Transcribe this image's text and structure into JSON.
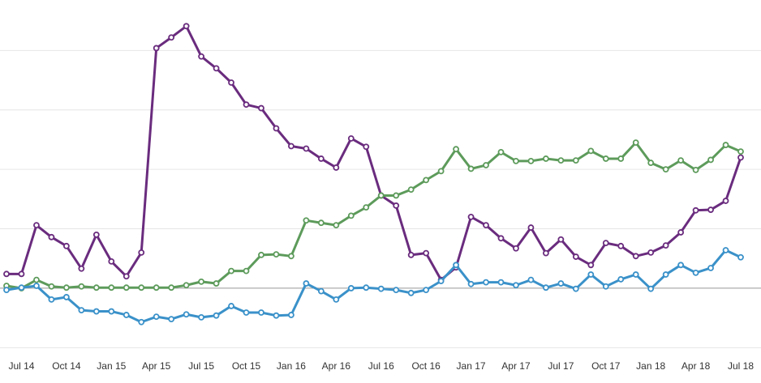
{
  "chart_data": {
    "type": "line",
    "categories": [
      null,
      "Jul 14",
      null,
      null,
      "Oct 14",
      null,
      null,
      "Jan 15",
      null,
      null,
      "Apr 15",
      null,
      null,
      "Jul 15",
      null,
      null,
      "Oct 15",
      null,
      null,
      "Jan 16",
      null,
      null,
      "Apr 16",
      null,
      null,
      "Jul 16",
      null,
      null,
      "Oct 16",
      null,
      null,
      "Jan 17",
      null,
      null,
      "Apr 17",
      null,
      null,
      "Jul 17",
      null,
      null,
      "Oct 17",
      null,
      null,
      "Jan 18",
      null,
      null,
      "Apr 18",
      null,
      null,
      "Jul 18"
    ],
    "series": [
      {
        "color": "#6a2c7e",
        "values": [
          0.24,
          0.24,
          1.06,
          0.86,
          0.71,
          0.33,
          0.9,
          0.45,
          0.2,
          0.6,
          4.04,
          4.22,
          4.41,
          3.9,
          3.7,
          3.46,
          3.09,
          3.03,
          2.69,
          2.39,
          2.35,
          2.18,
          2.03,
          2.52,
          2.38,
          1.56,
          1.39,
          0.56,
          0.59,
          0.14,
          0.35,
          1.2,
          1.06,
          0.84,
          0.67,
          1.02,
          0.59,
          0.82,
          0.53,
          0.39,
          0.76,
          0.71,
          0.54,
          0.6,
          0.72,
          0.94,
          1.31,
          1.32,
          1.47,
          2.2
        ]
      },
      {
        "color": "#5d9b5b",
        "values": [
          0.04,
          0,
          0.14,
          0.03,
          0.01,
          0.03,
          0.01,
          0.01,
          0.01,
          0.01,
          0.01,
          0.01,
          0.05,
          0.11,
          0.08,
          0.29,
          0.29,
          0.56,
          0.57,
          0.54,
          1.14,
          1.1,
          1.06,
          1.22,
          1.36,
          1.56,
          1.56,
          1.66,
          1.82,
          1.97,
          2.34,
          2.01,
          2.07,
          2.29,
          2.14,
          2.14,
          2.18,
          2.15,
          2.15,
          2.31,
          2.18,
          2.18,
          2.45,
          2.11,
          2.0,
          2.15,
          1.99,
          2.16,
          2.41,
          2.3
        ]
      },
      {
        "color": "#3a91c9",
        "values": [
          -0.03,
          0.01,
          0.04,
          -0.19,
          -0.15,
          -0.37,
          -0.39,
          -0.39,
          -0.45,
          -0.57,
          -0.48,
          -0.52,
          -0.44,
          -0.49,
          -0.46,
          -0.3,
          -0.41,
          -0.41,
          -0.46,
          -0.45,
          0.08,
          -0.05,
          -0.19,
          0,
          0.01,
          -0.01,
          -0.03,
          -0.08,
          -0.03,
          0.12,
          0.39,
          0.07,
          0.1,
          0.1,
          0.05,
          0.14,
          0.01,
          0.08,
          -0.01,
          0.23,
          0.03,
          0.15,
          0.23,
          -0.01,
          0.23,
          0.39,
          0.26,
          0.34,
          0.64,
          0.52
        ]
      }
    ],
    "ylim": [
      -1.2,
      4.85
    ],
    "yticks": [
      -1,
      0,
      1,
      2,
      3,
      4
    ],
    "grid": true
  }
}
